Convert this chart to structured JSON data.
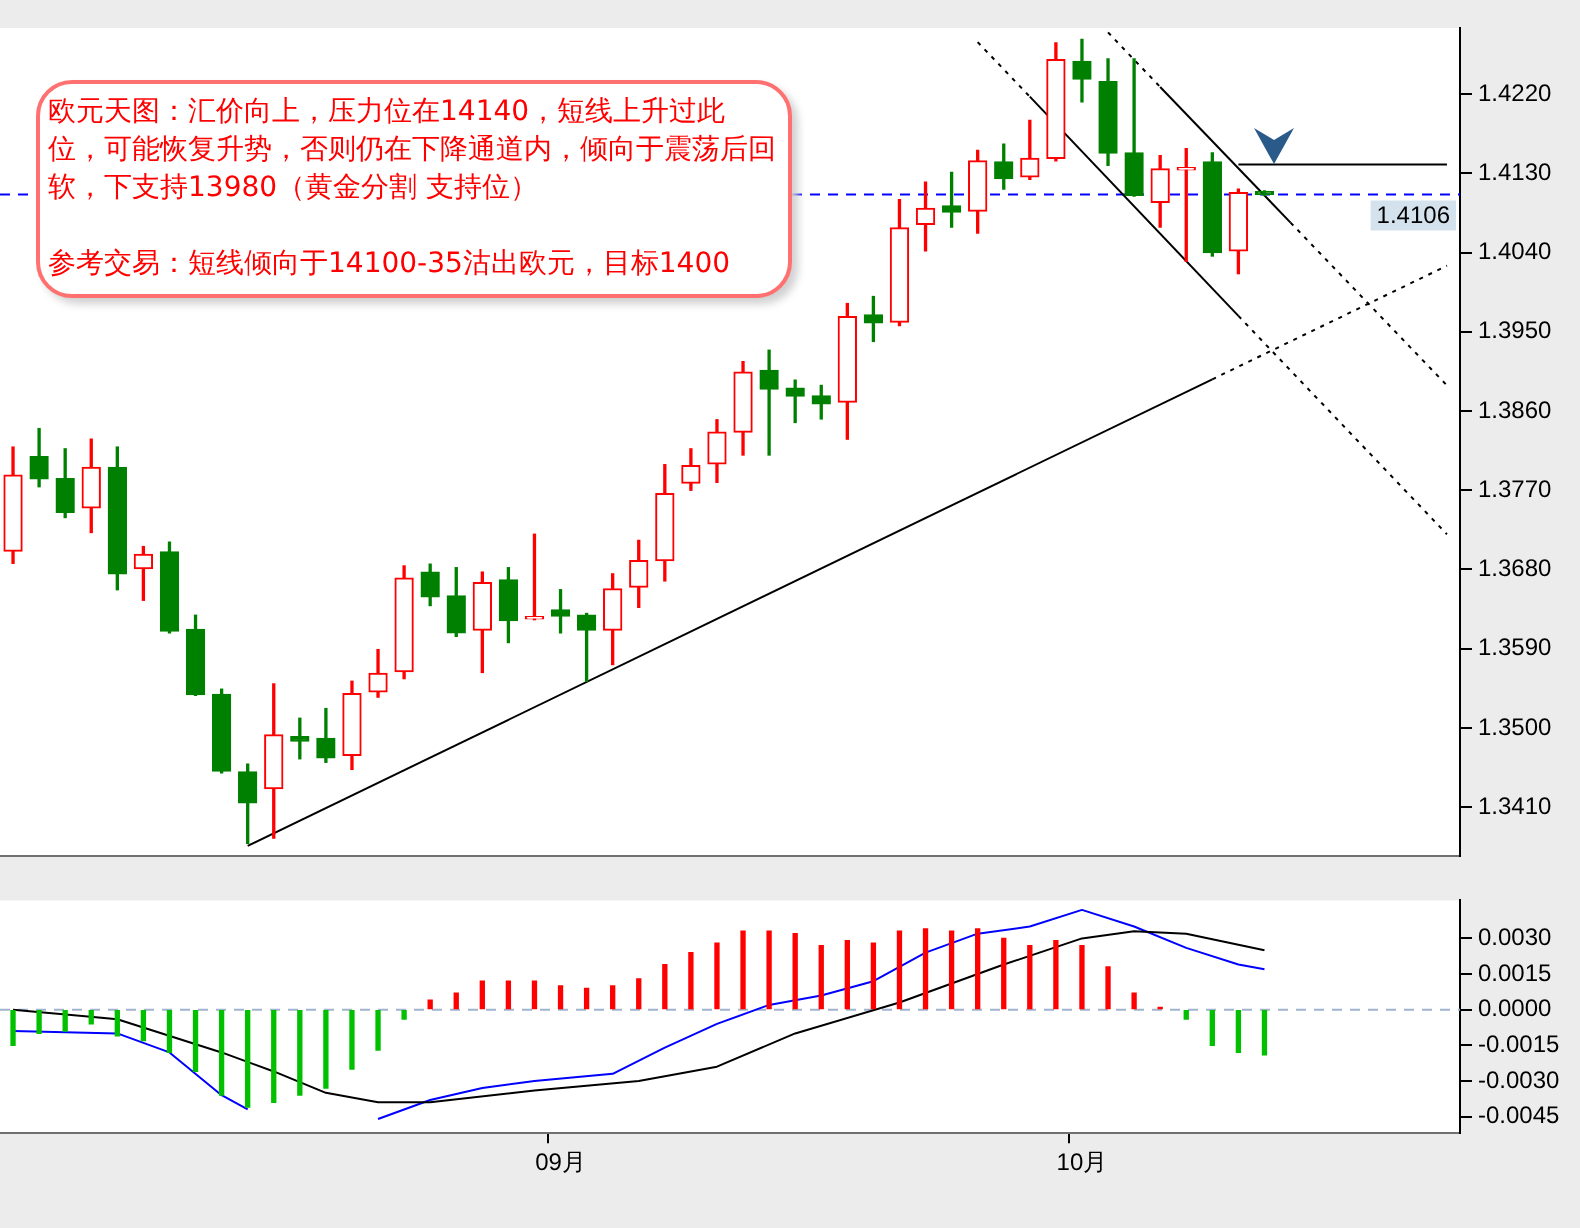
{
  "chart_data": [
    {
      "type": "candlestick",
      "annotations": [
        "欧元天图：汇价向上，压力位在14140，短线上升过此位，可能恢复升势，否则仍在下降通道内，倾向于震荡后回软，下支持13980（黄金分割 支持位）",
        "参考交易：短线倾向于14100-35沽出欧元，目标1400"
      ],
      "categories": [
        null,
        null,
        null,
        null,
        null,
        null,
        null,
        null,
        null,
        null,
        null,
        null,
        null,
        null,
        null,
        null,
        null,
        null,
        null,
        null,
        null,
        null,
        null,
        null,
        null,
        null,
        null,
        null,
        null,
        null,
        null,
        null,
        null,
        null,
        null,
        null,
        null,
        null,
        null,
        null,
        null,
        null,
        null,
        null,
        null,
        null,
        null,
        null,
        null,
        null,
        null,
        null,
        null,
        null,
        null,
        null
      ],
      "ohlc": [
        [
          1.3701,
          1.3819,
          1.3687,
          1.3787
        ],
        [
          1.3808,
          1.384,
          1.3774,
          1.3783
        ],
        [
          1.3783,
          1.3817,
          1.3739,
          1.3745
        ],
        [
          1.375,
          1.3828,
          1.3722,
          1.3796
        ],
        [
          1.3796,
          1.3819,
          1.3657,
          1.3675
        ],
        [
          1.3681,
          1.3706,
          1.3645,
          1.3697
        ],
        [
          1.37,
          1.3711,
          1.3608,
          1.361
        ],
        [
          1.3612,
          1.3628,
          1.3537,
          1.3538
        ],
        [
          1.3538,
          1.3544,
          1.3449,
          1.3451
        ],
        [
          1.345,
          1.3459,
          1.3369,
          1.3415
        ],
        [
          1.3431,
          1.355,
          1.3375,
          1.3492
        ],
        [
          1.349,
          1.3511,
          1.3465,
          1.3485
        ],
        [
          1.3488,
          1.3522,
          1.3461,
          1.3466
        ],
        [
          1.3469,
          1.3553,
          1.3453,
          1.3539
        ],
        [
          1.3541,
          1.3589,
          1.3535,
          1.3562
        ],
        [
          1.3564,
          1.3684,
          1.3556,
          1.367
        ],
        [
          1.3677,
          1.3686,
          1.3639,
          1.3649
        ],
        [
          1.365,
          1.3682,
          1.3604,
          1.3608
        ],
        [
          1.3611,
          1.3677,
          1.3563,
          1.3665
        ],
        [
          1.3668,
          1.3682,
          1.3597,
          1.3622
        ],
        [
          1.3624,
          1.372,
          1.3623,
          1.3625
        ],
        [
          1.3634,
          1.3657,
          1.3608,
          1.3627
        ],
        [
          1.3628,
          1.363,
          1.3553,
          1.3611
        ],
        [
          1.3611,
          1.3675,
          1.3572,
          1.3658
        ],
        [
          1.366,
          1.3713,
          1.3637,
          1.369
        ],
        [
          1.369,
          1.3799,
          1.3667,
          1.3766
        ],
        [
          1.3778,
          1.3817,
          1.377,
          1.3798
        ],
        [
          1.38,
          1.385,
          1.3779,
          1.3836
        ],
        [
          1.3836,
          1.3916,
          1.381,
          1.3904
        ],
        [
          1.3906,
          1.3929,
          1.381,
          1.3885
        ],
        [
          1.3886,
          1.3895,
          1.3847,
          1.3877
        ],
        [
          1.3877,
          1.3889,
          1.3851,
          1.3868
        ],
        [
          1.387,
          1.3982,
          1.3828,
          1.3967
        ],
        [
          1.3969,
          1.399,
          1.3939,
          1.396
        ],
        [
          1.3961,
          1.41,
          1.3957,
          1.4068
        ],
        [
          1.4072,
          1.412,
          1.4042,
          1.409
        ],
        [
          1.4093,
          1.4131,
          1.4069,
          1.4086
        ],
        [
          1.4087,
          1.4156,
          1.4062,
          1.4144
        ],
        [
          1.4143,
          1.4163,
          1.4112,
          1.4124
        ],
        [
          1.4126,
          1.419,
          1.4123,
          1.4147
        ],
        [
          1.4147,
          1.4278,
          1.4144,
          1.4259
        ],
        [
          1.4257,
          1.4282,
          1.4211,
          1.4237
        ],
        [
          1.4234,
          1.426,
          1.4139,
          1.4153
        ],
        [
          1.4153,
          1.426,
          1.4104,
          1.4105
        ],
        [
          1.4097,
          1.415,
          1.4069,
          1.4135
        ],
        [
          1.4134,
          1.4158,
          1.403,
          1.4135
        ],
        [
          1.4143,
          1.4153,
          1.4036,
          1.404
        ],
        [
          1.4042,
          1.4112,
          1.4016,
          1.4108
        ],
        [
          1.4109,
          1.411,
          1.4105,
          1.4106
        ],
        null,
        null,
        null,
        null,
        null,
        null,
        null
      ],
      "colors": [
        "#ff0000",
        "#008000",
        "#008000",
        "#ff0000",
        "#008000",
        "#ff0000",
        "#008000",
        "#008000",
        "#008000",
        "#008000",
        "#ff0000",
        "#008000",
        "#008000",
        "#ff0000",
        "#ff0000",
        "#ff0000",
        "#008000",
        "#008000",
        "#ff0000",
        "#008000",
        "#ff0000",
        "#008000",
        "#008000",
        "#ff0000",
        "#ff0000",
        "#ff0000",
        "#ff0000",
        "#ff0000",
        "#ff0000",
        "#008000",
        "#008000",
        "#008000",
        "#ff0000",
        "#008000",
        "#ff0000",
        "#ff0000",
        "#008000",
        "#ff0000",
        "#008000",
        "#ff0000",
        "#ff0000",
        "#008000",
        "#008000",
        "#008000",
        "#ff0000",
        "#ff0000",
        "#008000",
        "#ff0000",
        "#008000",
        null,
        null,
        null,
        null,
        null,
        null,
        null
      ],
      "series": [
        {
          "type": "line",
          "color": "#000000",
          "line_style": "solid",
          "values": [
            null,
            null,
            null,
            null,
            null,
            null,
            null,
            null,
            null,
            1.3366,
            null,
            null,
            null,
            null,
            null,
            null,
            null,
            null,
            null,
            null,
            null,
            null,
            null,
            null,
            null,
            null,
            null,
            null,
            null,
            null,
            null,
            null,
            null,
            null,
            null,
            null,
            null,
            null,
            null,
            null,
            null,
            null,
            null,
            null,
            null,
            null,
            1.3896,
            null,
            null,
            null,
            null,
            null,
            null,
            null,
            null,
            null
          ]
        },
        {
          "type": "line",
          "color": "#000000",
          "line_style": "dotted",
          "values": [
            null,
            null,
            null,
            null,
            null,
            null,
            null,
            null,
            null,
            null,
            null,
            null,
            null,
            null,
            null,
            null,
            null,
            null,
            null,
            null,
            null,
            null,
            null,
            null,
            null,
            null,
            null,
            null,
            null,
            null,
            null,
            null,
            null,
            null,
            null,
            null,
            null,
            null,
            null,
            null,
            null,
            null,
            null,
            null,
            null,
            null,
            1.3896,
            null,
            null,
            null,
            null,
            null,
            null,
            null,
            null,
            1.4025
          ]
        },
        {
          "type": "line",
          "color": "#000000",
          "line_style": "dotted",
          "values": [
            null,
            null,
            null,
            null,
            null,
            null,
            null,
            null,
            null,
            null,
            null,
            null,
            null,
            null,
            null,
            null,
            null,
            null,
            null,
            null,
            null,
            null,
            null,
            null,
            null,
            null,
            null,
            null,
            null,
            null,
            null,
            null,
            null,
            null,
            null,
            null,
            null,
            1.4279,
            null,
            1.4217,
            null,
            null,
            null,
            null,
            null,
            null,
            null,
            null,
            null,
            null,
            null,
            null,
            null,
            null,
            null,
            null
          ]
        },
        {
          "type": "line",
          "color": "#000000",
          "line_style": "solid",
          "values": [
            null,
            null,
            null,
            null,
            null,
            null,
            null,
            null,
            null,
            null,
            null,
            null,
            null,
            null,
            null,
            null,
            null,
            null,
            null,
            null,
            null,
            null,
            null,
            null,
            null,
            null,
            null,
            null,
            null,
            null,
            null,
            null,
            null,
            null,
            null,
            null,
            null,
            null,
            null,
            1.4217,
            null,
            null,
            null,
            null,
            null,
            null,
            null,
            1.3968,
            null,
            null,
            null,
            null,
            null,
            null,
            null,
            null
          ]
        },
        {
          "type": "line",
          "color": "#000000",
          "line_style": "dotted",
          "values": [
            null,
            null,
            null,
            null,
            null,
            null,
            null,
            null,
            null,
            null,
            null,
            null,
            null,
            null,
            null,
            null,
            null,
            null,
            null,
            null,
            null,
            null,
            null,
            null,
            null,
            null,
            null,
            null,
            null,
            null,
            null,
            null,
            null,
            null,
            null,
            null,
            null,
            null,
            null,
            null,
            null,
            null,
            null,
            null,
            null,
            null,
            null,
            1.3968,
            null,
            null,
            null,
            null,
            null,
            null,
            null,
            1.372
          ]
        },
        {
          "type": "line",
          "color": "#000000",
          "line_style": "dotted",
          "values": [
            null,
            null,
            null,
            null,
            null,
            null,
            null,
            null,
            null,
            null,
            null,
            null,
            null,
            null,
            null,
            null,
            null,
            null,
            null,
            null,
            null,
            null,
            null,
            null,
            null,
            null,
            null,
            null,
            null,
            null,
            null,
            null,
            null,
            null,
            null,
            null,
            null,
            null,
            null,
            null,
            null,
            null,
            1.429,
            null,
            1.4228,
            null,
            null,
            null,
            null,
            null,
            null,
            null,
            null,
            null,
            null,
            null
          ]
        },
        {
          "type": "line",
          "color": "#000000",
          "line_style": "solid",
          "values": [
            null,
            null,
            null,
            null,
            null,
            null,
            null,
            null,
            null,
            null,
            null,
            null,
            null,
            null,
            null,
            null,
            null,
            null,
            null,
            null,
            null,
            null,
            null,
            null,
            null,
            null,
            null,
            null,
            null,
            null,
            null,
            null,
            null,
            null,
            null,
            null,
            null,
            null,
            null,
            null,
            null,
            null,
            null,
            null,
            1.4228,
            null,
            null,
            null,
            null,
            1.4074,
            null,
            null,
            null,
            null,
            null,
            null
          ]
        },
        {
          "type": "line",
          "color": "#000000",
          "line_style": "dotted",
          "values": [
            null,
            null,
            null,
            null,
            null,
            null,
            null,
            null,
            null,
            null,
            null,
            null,
            null,
            null,
            null,
            null,
            null,
            null,
            null,
            null,
            null,
            null,
            null,
            null,
            null,
            null,
            null,
            null,
            null,
            null,
            null,
            null,
            null,
            null,
            null,
            null,
            null,
            null,
            null,
            null,
            null,
            null,
            null,
            null,
            null,
            null,
            null,
            null,
            null,
            1.4074,
            null,
            null,
            null,
            null,
            null,
            1.3889
          ]
        },
        {
          "type": "line",
          "color": "#000000",
          "line_style": "solid",
          "values": [
            null,
            null,
            null,
            null,
            null,
            null,
            null,
            null,
            null,
            null,
            null,
            null,
            null,
            null,
            null,
            null,
            null,
            null,
            null,
            null,
            null,
            null,
            null,
            null,
            null,
            null,
            null,
            null,
            null,
            null,
            null,
            null,
            null,
            null,
            null,
            null,
            null,
            null,
            null,
            null,
            null,
            null,
            null,
            null,
            null,
            null,
            null,
            1.414,
            null,
            null,
            null,
            null,
            null,
            null,
            null,
            1.414
          ]
        }
      ],
      "ylim": [
        1.3355,
        1.4295
      ],
      "yticks": [
        {
          "value": 1.341,
          "label": "1.3410"
        },
        {
          "value": 1.35,
          "label": "1.3500"
        },
        {
          "value": 1.359,
          "label": "1.3590"
        },
        {
          "value": 1.368,
          "label": "1.3680"
        },
        {
          "value": 1.377,
          "label": "1.3770"
        },
        {
          "value": 1.386,
          "label": "1.3860"
        },
        {
          "value": 1.395,
          "label": "1.3950"
        },
        {
          "value": 1.404,
          "label": "1.4040"
        },
        {
          "value": 1.413,
          "label": "1.4130"
        },
        {
          "value": 1.422,
          "label": "1.4220"
        }
      ],
      "ref_lines": [
        {
          "axis": "y",
          "value": 1.4106,
          "label": "1.4106",
          "color": "#0000ff",
          "line_style": "dashed"
        }
      ],
      "tick_labels": "y",
      "marker": "none",
      "grid": false,
      "legend": false
    },
    {
      "type": "bar",
      "categories": [
        null,
        null,
        null,
        null,
        null,
        null,
        null,
        null,
        null,
        null,
        null,
        null,
        null,
        null,
        null,
        null,
        null,
        null,
        null,
        null,
        null,
        "09月",
        null,
        null,
        null,
        null,
        null,
        null,
        null,
        null,
        null,
        null,
        null,
        null,
        null,
        null,
        null,
        null,
        null,
        null,
        null,
        "10月",
        null,
        null,
        null,
        null,
        null,
        null,
        null,
        null,
        null,
        null,
        null,
        null,
        null,
        null
      ],
      "series": [
        {
          "type": "bar",
          "values": [
            -0.0015,
            -0.001,
            -0.0009,
            -0.0006,
            -0.0011,
            -0.0013,
            -0.0018,
            -0.0026,
            -0.0036,
            -0.0041,
            -0.0039,
            -0.0036,
            -0.0033,
            -0.0025,
            -0.0017,
            -0.0004,
            0.0004,
            0.0007,
            0.0012,
            0.0012,
            0.0012,
            0.001,
            0.0009,
            0.001,
            0.0013,
            0.0019,
            0.0024,
            0.0028,
            0.0033,
            0.0033,
            0.0032,
            0.0027,
            0.0029,
            0.0028,
            0.0033,
            0.0034,
            0.0033,
            0.0034,
            0.003,
            0.0027,
            0.0029,
            0.0027,
            0.0018,
            0.0007,
            0.0001,
            -0.0004,
            -0.0015,
            -0.0018,
            -0.0019,
            null,
            null,
            null,
            null,
            null,
            null,
            null
          ],
          "colors": [
            "#00c000",
            "#00c000",
            "#00c000",
            "#00c000",
            "#00c000",
            "#00c000",
            "#00c000",
            "#00c000",
            "#00c000",
            "#00c000",
            "#00c000",
            "#00c000",
            "#00c000",
            "#00c000",
            "#00c000",
            "#00c000",
            "#ff0000",
            "#ff0000",
            "#ff0000",
            "#ff0000",
            "#ff0000",
            "#ff0000",
            "#ff0000",
            "#ff0000",
            "#ff0000",
            "#ff0000",
            "#ff0000",
            "#ff0000",
            "#ff0000",
            "#ff0000",
            "#ff0000",
            "#ff0000",
            "#ff0000",
            "#ff0000",
            "#ff0000",
            "#ff0000",
            "#ff0000",
            "#ff0000",
            "#ff0000",
            "#ff0000",
            "#ff0000",
            "#ff0000",
            "#ff0000",
            "#ff0000",
            "#ff0000",
            "#00c000",
            "#00c000",
            "#00c000",
            "#00c000",
            null,
            null,
            null,
            null,
            null,
            null,
            null
          ]
        },
        {
          "type": "line",
          "color": "#000000",
          "values": [
            0,
            null,
            null,
            null,
            -0.0004,
            null,
            null,
            null,
            -0.0018,
            null,
            -0.0026,
            null,
            -0.0035,
            null,
            -0.0039,
            null,
            -0.0039,
            null,
            null,
            null,
            -0.0034,
            null,
            null,
            null,
            -0.003,
            null,
            null,
            -0.0024,
            null,
            null,
            -0.001,
            null,
            null,
            null,
            0.0003,
            null,
            null,
            null,
            0.0019,
            null,
            null,
            0.003,
            null,
            0.0033,
            null,
            0.0032,
            null,
            null,
            0.0025,
            null,
            null,
            null,
            null,
            null,
            null,
            null
          ]
        },
        {
          "type": "line",
          "color": "#0000ff",
          "values": [
            -0.0009,
            null,
            null,
            null,
            -0.001,
            null,
            -0.0018,
            null,
            -0.0036,
            -0.0042,
            null,
            null,
            null,
            null,
            null,
            null,
            null,
            null,
            null,
            null,
            null,
            null,
            null,
            null,
            null,
            null,
            null,
            null,
            null,
            null,
            null,
            null,
            null,
            null,
            null,
            null,
            null,
            null,
            null,
            null,
            null,
            null,
            null,
            null,
            null,
            null,
            null,
            null,
            null,
            null,
            null,
            null,
            null,
            null,
            null,
            null
          ]
        },
        {
          "type": "line",
          "color": "#0000ff",
          "values": [
            null,
            null,
            null,
            null,
            null,
            null,
            null,
            null,
            null,
            null,
            null,
            null,
            null,
            null,
            -0.0046,
            null,
            -0.0038,
            null,
            -0.0033,
            null,
            -0.003,
            null,
            null,
            -0.0027,
            null,
            -0.0016,
            null,
            -0.0006,
            null,
            0.0002,
            null,
            0.0006,
            null,
            0.0012,
            null,
            0.0024,
            null,
            0.0032,
            null,
            0.0035,
            null,
            0.0042,
            null,
            0.0035,
            null,
            0.0026,
            null,
            0.0019,
            0.0017,
            null,
            null,
            null,
            null,
            null,
            null,
            null
          ]
        }
      ],
      "ylim": [
        -0.0052,
        0.0046
      ],
      "yticks": [
        {
          "value": -0.0045,
          "label": "-0.0045"
        },
        {
          "value": -0.003,
          "label": "-0.0030"
        },
        {
          "value": -0.0015,
          "label": "-0.0015"
        },
        {
          "value": 0,
          "label": "0.0000"
        },
        {
          "value": 0.0015,
          "label": "0.0015"
        },
        {
          "value": 0.003,
          "label": "0.0030"
        }
      ],
      "ref_lines": [
        {
          "axis": "y",
          "value": 0,
          "color": "#a0b4d0",
          "line_style": "dashed"
        }
      ],
      "marker": "none",
      "grid": false,
      "legend": false
    }
  ]
}
